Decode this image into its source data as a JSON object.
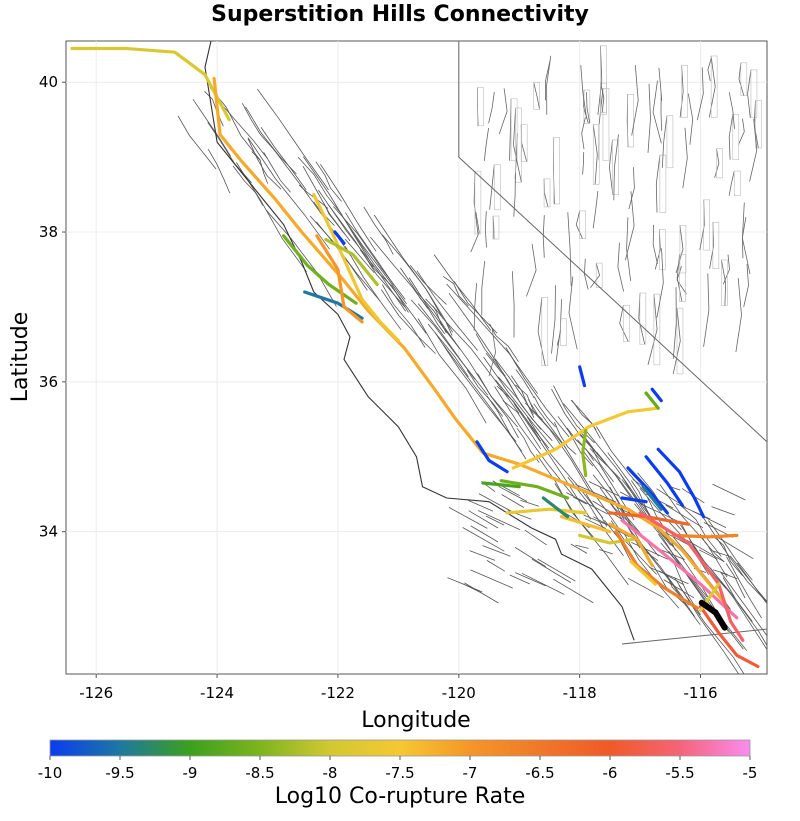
{
  "title": "Superstition Hills Connectivity",
  "chart_data": {
    "type": "map",
    "title": "Superstition Hills Connectivity",
    "xlabel": "Longitude",
    "ylabel": "Latitude",
    "xlim": [
      -126.5,
      -114.9
    ],
    "ylim": [
      32.1,
      40.55
    ],
    "xticks": [
      -126,
      -124,
      -122,
      -120,
      -118,
      -116
    ],
    "yticks": [
      34,
      36,
      38,
      40
    ],
    "colorbar": {
      "label": "Log10 Co-rupture Rate",
      "range": [
        -10,
        -5
      ],
      "ticks": [
        -10,
        -9.5,
        -9,
        -8.5,
        -8,
        -7.5,
        -7,
        -6.5,
        -6,
        -5.5,
        -5
      ],
      "stops": [
        {
          "value": -10,
          "color": "#0a3cf0"
        },
        {
          "value": -9.5,
          "color": "#1e78a0"
        },
        {
          "value": -9,
          "color": "#3ca01e"
        },
        {
          "value": -8.5,
          "color": "#7db41e"
        },
        {
          "value": -8,
          "color": "#d2c832"
        },
        {
          "value": -7.5,
          "color": "#f5c832"
        },
        {
          "value": -7,
          "color": "#f59628"
        },
        {
          "value": -6.5,
          "color": "#f07828"
        },
        {
          "value": -6,
          "color": "#f05a28"
        },
        {
          "value": -5.5,
          "color": "#f56478"
        },
        {
          "value": -5,
          "color": "#fa8cf0"
        }
      ]
    },
    "source_fault": {
      "name": "Superstition Hills",
      "color": "#000000",
      "trace": [
        [
          -115.98,
          33.05
        ],
        [
          -115.75,
          32.92
        ],
        [
          -115.6,
          32.72
        ]
      ]
    },
    "boundaries": [
      [
        [
          -120.0,
          40.55
        ],
        [
          -120.0,
          39.0
        ],
        [
          -114.9,
          35.2
        ]
      ],
      [
        [
          -117.3,
          32.5
        ],
        [
          -114.9,
          32.7
        ]
      ]
    ],
    "coastline": [
      [
        -124.1,
        40.55
      ],
      [
        -124.2,
        40.2
      ],
      [
        -124.0,
        39.2
      ],
      [
        -123.7,
        38.9
      ],
      [
        -123.2,
        38.4
      ],
      [
        -122.9,
        38.1
      ],
      [
        -122.6,
        37.6
      ],
      [
        -122.4,
        37.2
      ],
      [
        -122.0,
        36.9
      ],
      [
        -121.8,
        36.6
      ],
      [
        -121.9,
        36.3
      ],
      [
        -121.5,
        35.8
      ],
      [
        -121.0,
        35.4
      ],
      [
        -120.7,
        35.0
      ],
      [
        -120.6,
        34.6
      ],
      [
        -120.2,
        34.45
      ],
      [
        -119.5,
        34.4
      ],
      [
        -118.8,
        34.05
      ],
      [
        -118.4,
        33.9
      ],
      [
        -118.3,
        33.7
      ],
      [
        -117.8,
        33.5
      ],
      [
        -117.3,
        33.0
      ],
      [
        -117.1,
        32.55
      ]
    ],
    "ruptures": [
      {
        "v": -7.9,
        "pts": [
          [
            -126.4,
            40.45
          ],
          [
            -125.5,
            40.45
          ],
          [
            -124.7,
            40.4
          ],
          [
            -124.2,
            40.1
          ],
          [
            -123.8,
            39.5
          ]
        ]
      },
      {
        "v": -7.2,
        "pts": [
          [
            -124.05,
            40.05
          ],
          [
            -123.95,
            39.3
          ],
          [
            -123.6,
            38.95
          ],
          [
            -123.05,
            38.45
          ],
          [
            -122.6,
            38.0
          ],
          [
            -121.9,
            37.35
          ],
          [
            -121.5,
            36.95
          ],
          [
            -120.9,
            36.45
          ],
          [
            -120.4,
            35.9
          ],
          [
            -120.05,
            35.5
          ],
          [
            -119.6,
            35.05
          ],
          [
            -119.0,
            34.9
          ],
          [
            -118.4,
            34.7
          ],
          [
            -117.8,
            34.5
          ],
          [
            -117.2,
            34.3
          ],
          [
            -116.7,
            34.05
          ],
          [
            -116.3,
            33.75
          ],
          [
            -116.0,
            33.45
          ],
          [
            -115.6,
            33.05
          ]
        ]
      },
      {
        "v": -7.6,
        "pts": [
          [
            -122.4,
            38.5
          ],
          [
            -122.1,
            38.0
          ],
          [
            -121.85,
            37.55
          ],
          [
            -121.6,
            37.1
          ],
          [
            -121.3,
            36.8
          ],
          [
            -121.0,
            36.55
          ]
        ]
      },
      {
        "v": -8.6,
        "pts": [
          [
            -122.9,
            37.95
          ],
          [
            -122.5,
            37.55
          ],
          [
            -122.15,
            37.3
          ],
          [
            -121.7,
            37.05
          ]
        ]
      },
      {
        "v": -9.5,
        "pts": [
          [
            -122.55,
            37.2
          ],
          [
            -122.0,
            37.05
          ],
          [
            -121.6,
            36.85
          ]
        ]
      },
      {
        "v": -8.2,
        "pts": [
          [
            -122.2,
            37.9
          ],
          [
            -121.75,
            37.7
          ],
          [
            -121.35,
            37.3
          ]
        ]
      },
      {
        "v": -7.0,
        "pts": [
          [
            -122.35,
            37.95
          ],
          [
            -122.0,
            37.5
          ],
          [
            -121.9,
            37.0
          ],
          [
            -121.6,
            36.8
          ]
        ]
      },
      {
        "v": -10.0,
        "pts": [
          [
            -122.05,
            38.0
          ],
          [
            -121.9,
            37.85
          ]
        ]
      },
      {
        "v": -7.5,
        "pts": [
          [
            -119.1,
            34.85
          ],
          [
            -118.4,
            35.1
          ],
          [
            -117.85,
            35.4
          ],
          [
            -117.2,
            35.6
          ],
          [
            -116.7,
            35.65
          ]
        ]
      },
      {
        "v": -8.4,
        "pts": [
          [
            -117.9,
            35.35
          ],
          [
            -117.95,
            35.05
          ],
          [
            -117.9,
            34.75
          ]
        ]
      },
      {
        "v": -10.0,
        "pts": [
          [
            -118.0,
            36.2
          ],
          [
            -117.92,
            35.95
          ]
        ]
      },
      {
        "v": -8.7,
        "pts": [
          [
            -116.7,
            35.65
          ],
          [
            -116.9,
            35.85
          ]
        ]
      },
      {
        "v": -10.0,
        "pts": [
          [
            -116.8,
            35.9
          ],
          [
            -116.65,
            35.75
          ]
        ]
      },
      {
        "v": -10.0,
        "pts": [
          [
            -116.7,
            35.1
          ],
          [
            -116.35,
            34.8
          ],
          [
            -116.1,
            34.45
          ],
          [
            -115.95,
            34.2
          ]
        ]
      },
      {
        "v": -10.0,
        "pts": [
          [
            -116.9,
            35.0
          ],
          [
            -116.55,
            34.65
          ],
          [
            -116.3,
            34.35
          ]
        ]
      },
      {
        "v": -10.0,
        "pts": [
          [
            -117.2,
            34.85
          ],
          [
            -116.85,
            34.55
          ],
          [
            -116.55,
            34.25
          ]
        ]
      },
      {
        "v": -9.5,
        "pts": [
          [
            -116.95,
            34.6
          ],
          [
            -116.65,
            34.3
          ]
        ]
      },
      {
        "v": -10.0,
        "pts": [
          [
            -117.3,
            34.45
          ],
          [
            -116.9,
            34.4
          ]
        ]
      },
      {
        "v": -10.0,
        "pts": [
          [
            -119.7,
            35.2
          ],
          [
            -119.5,
            34.95
          ],
          [
            -119.2,
            34.8
          ]
        ]
      },
      {
        "v": -8.6,
        "pts": [
          [
            -119.3,
            34.68
          ],
          [
            -118.7,
            34.6
          ],
          [
            -118.2,
            34.45
          ]
        ]
      },
      {
        "v": -7.7,
        "pts": [
          [
            -119.2,
            34.25
          ],
          [
            -118.5,
            34.3
          ],
          [
            -117.9,
            34.25
          ]
        ]
      },
      {
        "v": -7.4,
        "pts": [
          [
            -118.3,
            34.2
          ],
          [
            -117.9,
            34.1
          ],
          [
            -117.5,
            34.0
          ]
        ]
      },
      {
        "v": -8.0,
        "pts": [
          [
            -118.0,
            33.95
          ],
          [
            -117.5,
            33.85
          ],
          [
            -117.1,
            33.9
          ]
        ]
      },
      {
        "v": -7.2,
        "pts": [
          [
            -117.5,
            34.1
          ],
          [
            -117.05,
            33.9
          ],
          [
            -116.8,
            33.55
          ]
        ]
      },
      {
        "v": -6.2,
        "pts": [
          [
            -117.5,
            34.25
          ],
          [
            -116.9,
            34.2
          ],
          [
            -116.2,
            34.1
          ]
        ]
      },
      {
        "v": -6.7,
        "pts": [
          [
            -116.45,
            33.95
          ],
          [
            -115.85,
            33.93
          ],
          [
            -115.4,
            33.95
          ]
        ]
      },
      {
        "v": -6.6,
        "pts": [
          [
            -117.4,
            34.0
          ],
          [
            -117.05,
            33.55
          ],
          [
            -116.6,
            33.25
          ],
          [
            -116.05,
            32.98
          ]
        ]
      },
      {
        "v": -7.6,
        "pts": [
          [
            -117.15,
            33.6
          ],
          [
            -116.75,
            33.3
          ]
        ]
      },
      {
        "v": -5.3,
        "pts": [
          [
            -117.3,
            34.15
          ],
          [
            -116.6,
            33.7
          ],
          [
            -116.0,
            33.3
          ],
          [
            -115.6,
            33.0
          ],
          [
            -115.4,
            32.85
          ]
        ]
      },
      {
        "v": -5.6,
        "pts": [
          [
            -117.0,
            34.25
          ],
          [
            -116.2,
            33.85
          ],
          [
            -115.7,
            33.3
          ],
          [
            -115.5,
            32.8
          ],
          [
            -115.3,
            32.55
          ]
        ]
      },
      {
        "v": -5.9,
        "pts": [
          [
            -116.0,
            33.0
          ],
          [
            -115.7,
            32.65
          ],
          [
            -115.4,
            32.35
          ],
          [
            -115.05,
            32.2
          ]
        ]
      },
      {
        "v": -7.8,
        "pts": [
          [
            -116.0,
            32.95
          ],
          [
            -115.7,
            33.3
          ]
        ]
      },
      {
        "v": -9.3,
        "pts": [
          [
            -118.6,
            34.45
          ],
          [
            -118.2,
            34.2
          ]
        ]
      },
      {
        "v": -8.9,
        "pts": [
          [
            -119.6,
            34.65
          ],
          [
            -119.0,
            34.6
          ]
        ]
      }
    ]
  }
}
